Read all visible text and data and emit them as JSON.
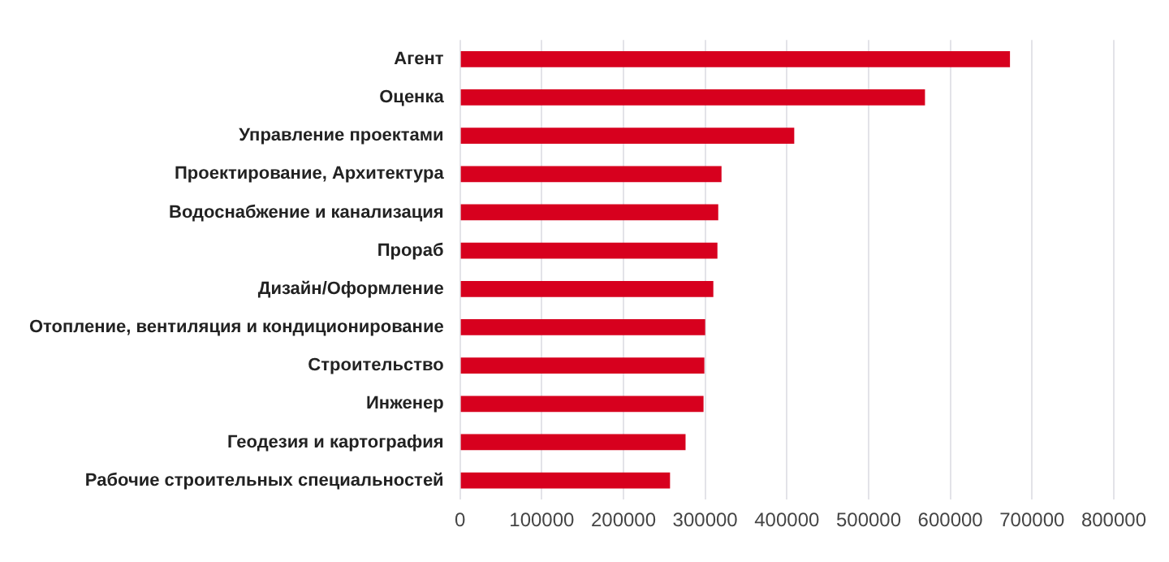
{
  "chart_data": {
    "type": "bar",
    "orientation": "horizontal",
    "categories": [
      "Агент",
      "Оценка",
      "Управление проектами",
      "Проектирование, Архитектура",
      "Водоснабжение и канализация",
      "Прораб",
      "Дизайн/Оформление",
      "Отопление, вентиляция и кондиционирование",
      "Строительство",
      "Инженер",
      "Геодезия и картография",
      "Рабочие строительных специальностей"
    ],
    "values": [
      673000,
      569000,
      409000,
      320000,
      316000,
      315000,
      310000,
      300000,
      299000,
      298000,
      276000,
      257000
    ],
    "color": "#d7001e",
    "xlim": [
      0,
      800000
    ],
    "xticks": [
      0,
      100000,
      200000,
      300000,
      400000,
      500000,
      600000,
      700000,
      800000
    ],
    "grid": "x"
  }
}
